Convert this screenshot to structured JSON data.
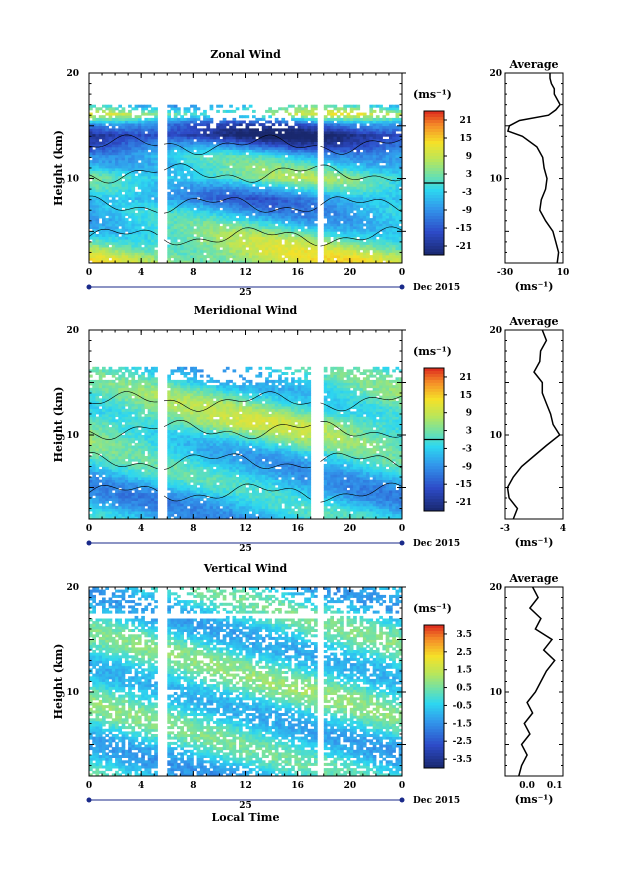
{
  "chart_data": [
    {
      "type": "heatmap",
      "id": "zonal",
      "title": "Zonal Wind",
      "ylabel": "Height (km)",
      "xlabel": "",
      "xlim": [
        0,
        24
      ],
      "ylim": [
        2,
        20
      ],
      "xticks": [
        "0",
        "4",
        "8",
        "12",
        "16",
        "20",
        "0"
      ],
      "yticks": [
        "20",
        "10"
      ],
      "day_label": "25",
      "date_label": "Dec 2015",
      "gaps_hours": [
        [
          5.3,
          5.9
        ],
        [
          17.6,
          18.0
        ]
      ],
      "data_top_km": 17,
      "colorbar": {
        "unit": "(ms⁻¹)",
        "ticks": [
          "21",
          "15",
          "9",
          "3",
          "-3",
          "-9",
          "-15",
          "-21"
        ],
        "range": [
          -24,
          24
        ],
        "contour_level": 0
      },
      "profile_bands": [
        [
          17,
          -6
        ],
        [
          16,
          6
        ],
        [
          15,
          -14
        ],
        [
          14,
          -22
        ],
        [
          12,
          -4
        ],
        [
          10,
          2
        ],
        [
          8,
          -10
        ],
        [
          6,
          -4
        ],
        [
          4,
          4
        ],
        [
          2.5,
          8
        ]
      ],
      "average": {
        "title": "Average",
        "xticks": [
          "-30",
          "10"
        ],
        "xlim": [
          -30,
          10
        ],
        "unit": "(ms⁻¹)",
        "y": [
          2,
          3,
          4,
          5,
          6,
          7,
          8,
          9,
          10,
          11,
          12,
          13,
          14,
          14.5,
          15,
          15.5,
          16,
          16.5,
          17,
          17.5,
          18,
          18.5,
          19,
          19.5,
          20
        ],
        "x": [
          6,
          7,
          5,
          3,
          -2,
          -6,
          -5,
          -2,
          -1,
          -3,
          -4,
          -8,
          -18,
          -28,
          -27,
          -20,
          0,
          5,
          8,
          6,
          4,
          4,
          2,
          1,
          1
        ]
      }
    },
    {
      "type": "heatmap",
      "id": "meridional",
      "title": "Meridional Wind",
      "ylabel": "Height (km)",
      "xlabel": "",
      "xlim": [
        0,
        24
      ],
      "ylim": [
        2,
        20
      ],
      "xticks": [
        "0",
        "4",
        "8",
        "12",
        "16",
        "20",
        "0"
      ],
      "yticks": [
        "20",
        "10"
      ],
      "day_label": "25",
      "date_label": "Dec 2015",
      "gaps_hours": [
        [
          5.3,
          5.9
        ],
        [
          17.1,
          18.0
        ]
      ],
      "data_top_km": 16.5,
      "colorbar": {
        "unit": "(ms⁻¹)",
        "ticks": [
          "21",
          "15",
          "9",
          "3",
          "-3",
          "-9",
          "-15",
          "-21"
        ],
        "range": [
          -24,
          24
        ],
        "contour_level": 0
      },
      "profile_bands": [
        [
          16.5,
          -3
        ],
        [
          15,
          -2
        ],
        [
          13,
          2
        ],
        [
          11,
          5
        ],
        [
          9.5,
          1
        ],
        [
          8,
          -3
        ],
        [
          6,
          -4
        ],
        [
          4,
          -6
        ],
        [
          2.5,
          -5
        ]
      ],
      "average": {
        "title": "Average",
        "xticks": [
          "-3",
          "4"
        ],
        "xlim": [
          -3,
          4
        ],
        "unit": "(ms⁻¹)",
        "y": [
          2,
          3,
          4,
          5,
          6,
          7,
          8,
          9,
          10,
          11,
          12,
          13,
          14,
          15,
          16,
          17,
          18,
          19,
          20
        ],
        "x": [
          -2,
          -1.5,
          -2.5,
          -2.7,
          -2,
          -1,
          0.5,
          2,
          3.6,
          2.8,
          2.5,
          2,
          1.5,
          1.5,
          0.5,
          1.2,
          1.3,
          2,
          1.5
        ]
      }
    },
    {
      "type": "heatmap",
      "id": "vertical",
      "title": "Vertical Wind",
      "ylabel": "Height (km)",
      "xlabel": "Local Time",
      "xlim": [
        0,
        24
      ],
      "ylim": [
        2,
        20
      ],
      "xticks": [
        "0",
        "4",
        "8",
        "12",
        "16",
        "20",
        "0"
      ],
      "yticks": [
        "20",
        "10"
      ],
      "day_label": "25",
      "date_label": "Dec 2015",
      "gaps_hours": [
        [
          5.3,
          5.9
        ],
        [
          17.6,
          18.0
        ]
      ],
      "data_top_km": 20,
      "colorbar": {
        "unit": "(ms⁻¹)",
        "ticks": [
          "3.5",
          "2.5",
          "1.5",
          "0.5",
          "-0.5",
          "-1.5",
          "-2.5",
          "-3.5"
        ],
        "range": [
          -4,
          4
        ],
        "contour_level": null
      },
      "profile_bands": [
        [
          20,
          -0.5
        ],
        [
          10,
          0
        ],
        [
          2,
          -0.6
        ]
      ],
      "average": {
        "title": "Average",
        "xticks": [
          "0.0",
          "0.1"
        ],
        "xlim": [
          -0.08,
          0.13
        ],
        "unit": "(ms⁻¹)",
        "y": [
          2,
          3,
          4,
          5,
          6,
          7,
          8,
          9,
          10,
          11,
          12,
          13,
          14,
          15,
          16,
          17,
          18,
          19,
          20
        ],
        "x": [
          -0.03,
          -0.02,
          0.0,
          -0.02,
          0.01,
          -0.01,
          0.02,
          0.0,
          0.03,
          0.05,
          0.07,
          0.1,
          0.06,
          0.09,
          0.03,
          0.05,
          0.01,
          0.04,
          0.02
        ]
      }
    }
  ]
}
